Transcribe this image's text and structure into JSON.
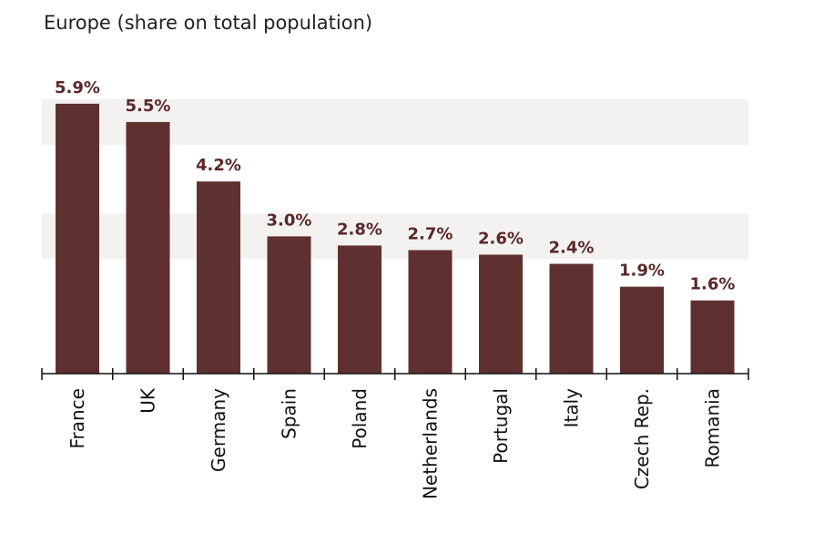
{
  "chart_data": {
    "type": "bar",
    "title": "Europe (share on total population)",
    "categories": [
      "France",
      "UK",
      "Germany",
      "Spain",
      "Poland",
      "Netherlands",
      "Portugal",
      "Italy",
      "Czech Rep.",
      "Romania"
    ],
    "values": [
      5.9,
      5.5,
      4.2,
      3.0,
      2.8,
      2.7,
      2.6,
      2.4,
      1.9,
      1.6
    ],
    "value_labels": [
      "5.9%",
      "5.5%",
      "4.2%",
      "3.0%",
      "2.8%",
      "2.7%",
      "2.6%",
      "2.4%",
      "1.9%",
      "1.6%"
    ],
    "xlabel": "",
    "ylabel": "",
    "ylim": [
      0,
      7
    ],
    "grid": false,
    "bar_color": "#5f3030",
    "label_color": "#5a2828",
    "band_color": "#f4f2f0"
  }
}
